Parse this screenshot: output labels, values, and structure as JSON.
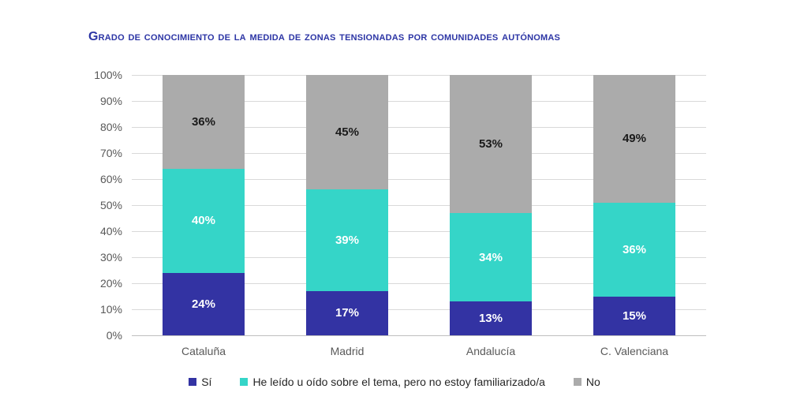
{
  "title": "Grado de conocimiento de la medida de zonas tensionadas por comunidades autónomas",
  "colors": {
    "title_text": "#2C35A5",
    "gridline": "#D9D9D9",
    "axis_line": "#BFBFBF",
    "axis_text": "#595959",
    "label_on_dark": "#ffffff",
    "label_on_gray": "#1a1a1a",
    "legend_text": "#262626"
  },
  "chart_data": {
    "type": "bar",
    "stacked": true,
    "title": "Grado de conocimiento de la medida de zonas tensionadas por comunidades autónomas",
    "categories": [
      "Cataluña",
      "Madrid",
      "Andalucía",
      "C. Valenciana"
    ],
    "series": [
      {
        "name": "Sí",
        "color": "#3333A3",
        "values": [
          24,
          17,
          13,
          15
        ]
      },
      {
        "name": "He leído u oído sobre el tema, pero no estoy familiarizado/a",
        "color": "#35D5C8",
        "values": [
          40,
          39,
          34,
          36
        ]
      },
      {
        "name": "No",
        "color": "#ABABAB",
        "values": [
          36,
          45,
          53,
          49
        ]
      }
    ],
    "data_labels": [
      {
        "category": "Cataluña",
        "si": "24%",
        "leido": "40%",
        "no": "36%"
      },
      {
        "category": "Madrid",
        "si": "17%",
        "leido": "39%",
        "no": "45%"
      },
      {
        "category": "Andalucía",
        "si": "13%",
        "leido": "34%",
        "no": "53%"
      },
      {
        "category": "C. Valenciana",
        "si": "15%",
        "leido": "36%",
        "no": "49%"
      }
    ],
    "xlabel": "",
    "ylabel": "",
    "ylim": [
      0,
      100
    ],
    "y_ticks": [
      "0%",
      "10%",
      "20%",
      "30%",
      "40%",
      "50%",
      "60%",
      "70%",
      "80%",
      "90%",
      "100%"
    ],
    "grid": true,
    "legend_position": "bottom"
  }
}
